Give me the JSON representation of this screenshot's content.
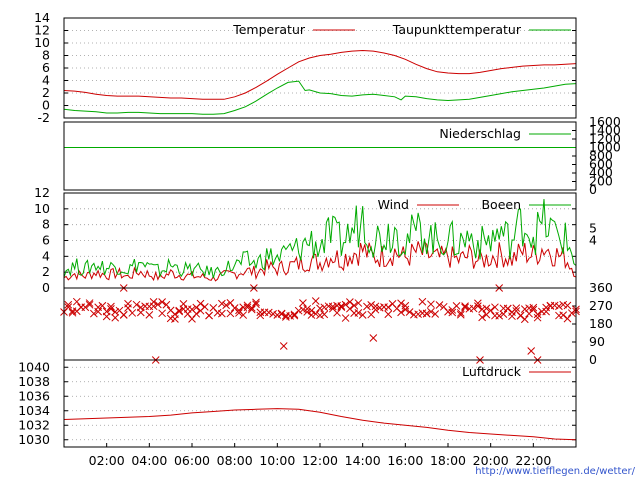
{
  "credit": "http://www.tiefflegen.de/wetter/",
  "x_ticks": [
    "02:00",
    "04:00",
    "06:00",
    "08:00",
    "10:00",
    "12:00",
    "14:00",
    "16:00",
    "18:00",
    "20:00",
    "22:00"
  ],
  "chart_data": [
    {
      "type": "line",
      "panel": "temperature",
      "unit_note": "",
      "x_range": [
        0,
        24
      ],
      "ylim": [
        -2,
        14
      ],
      "y_ticks": [
        "-2",
        "0",
        "2",
        "4",
        "6",
        "8",
        "10",
        "12",
        "14"
      ],
      "grid": true,
      "legend": "top-right",
      "series": [
        {
          "name": "Temperatur",
          "color": "#cc0000",
          "x": [
            0,
            0.5,
            1,
            1.5,
            2,
            2.5,
            3,
            3.5,
            4,
            4.5,
            5,
            5.5,
            6,
            6.5,
            7,
            7.5,
            8,
            8.5,
            9,
            9.5,
            10,
            10.5,
            11,
            11.5,
            12,
            12.5,
            13,
            13.5,
            14,
            14.5,
            15,
            15.5,
            16,
            16.5,
            17,
            17.5,
            18,
            18.5,
            19,
            19.5,
            20,
            20.5,
            21,
            21.5,
            22,
            22.5,
            23,
            23.5,
            24
          ],
          "values": [
            2.4,
            2.3,
            2.1,
            1.8,
            1.6,
            1.5,
            1.5,
            1.5,
            1.4,
            1.3,
            1.2,
            1.2,
            1.1,
            1.0,
            1.0,
            1.0,
            1.4,
            2.0,
            2.9,
            3.9,
            5.0,
            6.0,
            7.0,
            7.6,
            8.0,
            8.2,
            8.5,
            8.7,
            8.8,
            8.7,
            8.4,
            8.0,
            7.4,
            6.6,
            5.9,
            5.4,
            5.2,
            5.1,
            5.1,
            5.3,
            5.6,
            5.9,
            6.1,
            6.3,
            6.4,
            6.5,
            6.5,
            6.6,
            6.7
          ]
        },
        {
          "name": "Taupunkttemperatur",
          "color": "#00aa00",
          "x": [
            0,
            0.5,
            1,
            1.5,
            2,
            2.5,
            3,
            3.5,
            4,
            4.5,
            5,
            5.5,
            6,
            6.5,
            7,
            7.5,
            8,
            8.5,
            9,
            9.5,
            10,
            10.5,
            11,
            11.3,
            11.5,
            12,
            12.5,
            13,
            13.5,
            14,
            14.5,
            15,
            15.5,
            15.8,
            16,
            16.5,
            17,
            17.5,
            18,
            18.5,
            19,
            19.5,
            20,
            20.5,
            21,
            21.5,
            22,
            22.5,
            23,
            23.5,
            24
          ],
          "values": [
            -0.6,
            -0.8,
            -0.9,
            -1.0,
            -1.2,
            -1.2,
            -1.1,
            -1.1,
            -1.2,
            -1.3,
            -1.3,
            -1.3,
            -1.3,
            -1.4,
            -1.4,
            -1.3,
            -0.8,
            -0.2,
            0.7,
            1.8,
            2.8,
            3.7,
            3.9,
            2.4,
            2.5,
            2.0,
            1.9,
            1.6,
            1.5,
            1.7,
            1.8,
            1.6,
            1.4,
            0.9,
            1.5,
            1.4,
            1.1,
            0.9,
            0.8,
            0.9,
            1.0,
            1.3,
            1.6,
            1.9,
            2.2,
            2.4,
            2.6,
            2.8,
            3.1,
            3.4,
            3.5
          ]
        }
      ]
    },
    {
      "type": "line",
      "panel": "precipitation",
      "x_range": [
        0,
        24
      ],
      "ylim": [
        0,
        1600
      ],
      "y_ticks": [
        "0",
        "200",
        "400",
        "600",
        "800",
        "1000",
        "1200",
        "1400",
        "1600"
      ],
      "axis_side": "right",
      "legend": "top-right",
      "series": [
        {
          "name": "Niederschlag",
          "color": "#00aa00",
          "x": [
            0,
            24
          ],
          "values": [
            1000,
            1000
          ]
        }
      ]
    },
    {
      "type": "line",
      "panel": "wind",
      "x_range": [
        0,
        24
      ],
      "ylim": [
        0,
        12
      ],
      "y_ticks": [
        "0",
        "2",
        "4",
        "6",
        "8",
        "10",
        "12"
      ],
      "y2_ticks": [
        "4",
        "5"
      ],
      "grid": true,
      "legend": "top-right",
      "series": [
        {
          "name": "Wind",
          "color": "#cc0000",
          "x": [
            0,
            0.5,
            1,
            1.5,
            2,
            2.5,
            3,
            3.5,
            4,
            4.5,
            5,
            5.5,
            6,
            6.5,
            7,
            7.5,
            8,
            8.5,
            9,
            9.5,
            10,
            10.5,
            11,
            11.5,
            12,
            12.5,
            13,
            13.5,
            14,
            14.5,
            15,
            15.5,
            16,
            16.5,
            17,
            17.5,
            18,
            18.5,
            19,
            19.5,
            20,
            20.5,
            21,
            21.5,
            22,
            22.5,
            23,
            23.5,
            24
          ],
          "values": [
            1.3,
            1.8,
            1.5,
            2.0,
            1.6,
            1.9,
            1.4,
            2.1,
            1.7,
            1.3,
            1.9,
            1.6,
            1.5,
            1.4,
            1.2,
            1.6,
            1.8,
            2.2,
            2.0,
            2.6,
            2.4,
            2.8,
            3.0,
            3.5,
            3.2,
            4.2,
            3.6,
            4.4,
            4.8,
            3.9,
            4.1,
            4.6,
            3.8,
            4.5,
            4.2,
            3.7,
            4.0,
            3.5,
            4.1,
            3.4,
            3.9,
            4.3,
            3.6,
            4.6,
            4.1,
            5.2,
            4.3,
            3.8,
            2.0
          ]
        },
        {
          "name": "Boeen",
          "color": "#00aa00",
          "x": [
            0,
            0.5,
            1,
            1.5,
            2,
            2.5,
            3,
            3.5,
            4,
            4.5,
            5,
            5.5,
            6,
            6.5,
            7,
            7.5,
            8,
            8.5,
            9,
            9.5,
            10,
            10.5,
            11,
            11.5,
            12,
            12.5,
            13,
            13.5,
            14,
            14.5,
            15,
            15.5,
            16,
            16.5,
            17,
            17.5,
            18,
            18.5,
            19,
            19.5,
            20,
            20.5,
            21,
            21.5,
            22,
            22.5,
            23,
            23.5,
            24
          ],
          "values": [
            2.2,
            2.8,
            2.4,
            3.0,
            2.5,
            2.9,
            2.3,
            3.2,
            2.6,
            2.1,
            2.9,
            2.4,
            2.3,
            2.2,
            1.9,
            2.5,
            2.8,
            3.4,
            3.1,
            4.0,
            3.7,
            4.6,
            4.9,
            6.0,
            5.3,
            6.8,
            5.8,
            7.1,
            9.2,
            6.2,
            6.7,
            7.4,
            6.0,
            7.2,
            6.8,
            5.9,
            6.3,
            5.6,
            6.6,
            5.5,
            6.2,
            7.0,
            5.8,
            8.7,
            6.6,
            8.2,
            6.9,
            6.1,
            3.2
          ]
        }
      ]
    },
    {
      "type": "scatter",
      "panel": "wind-direction",
      "marker": "x",
      "color": "#cc0000",
      "x_range": [
        0,
        24
      ],
      "ylim": [
        0,
        360
      ],
      "y_ticks": [
        "0",
        "90",
        "180",
        "270",
        "360"
      ],
      "axis_side": "right",
      "direction_profile": {
        "x": [
          0,
          3,
          6,
          9,
          12,
          15,
          18,
          21,
          24
        ],
        "values": [
          250,
          255,
          245,
          250,
          250,
          255,
          250,
          245,
          250
        ]
      },
      "outliers": [
        {
          "x": 4.3,
          "value": 0
        },
        {
          "x": 10.3,
          "value": 70
        },
        {
          "x": 14.5,
          "value": 110
        },
        {
          "x": 19.5,
          "value": 0
        },
        {
          "x": 21.9,
          "value": 45
        },
        {
          "x": 22.2,
          "value": 0
        },
        {
          "x": 2.8,
          "value": 360
        },
        {
          "x": 8.9,
          "value": 360
        },
        {
          "x": 20.4,
          "value": 360
        }
      ]
    },
    {
      "type": "line",
      "panel": "pressure",
      "x_range": [
        0,
        24
      ],
      "ylim": [
        1029,
        1041
      ],
      "y_ticks": [
        "1030",
        "1032",
        "1034",
        "1036",
        "1038",
        "1040"
      ],
      "grid": true,
      "legend": "top-right",
      "series": [
        {
          "name": "Luftdruck",
          "color": "#cc0000",
          "x": [
            0,
            1,
            2,
            3,
            4,
            5,
            6,
            7,
            8,
            9,
            10,
            11,
            12,
            13,
            14,
            15,
            16,
            17,
            18,
            19,
            20,
            21,
            22,
            23,
            24
          ],
          "values": [
            1032.8,
            1032.9,
            1033.0,
            1033.1,
            1033.2,
            1033.4,
            1033.7,
            1033.9,
            1034.1,
            1034.2,
            1034.3,
            1034.2,
            1033.8,
            1033.2,
            1032.7,
            1032.3,
            1032.0,
            1031.7,
            1031.3,
            1031.0,
            1030.8,
            1030.6,
            1030.4,
            1030.1,
            1030.0
          ]
        }
      ]
    }
  ]
}
